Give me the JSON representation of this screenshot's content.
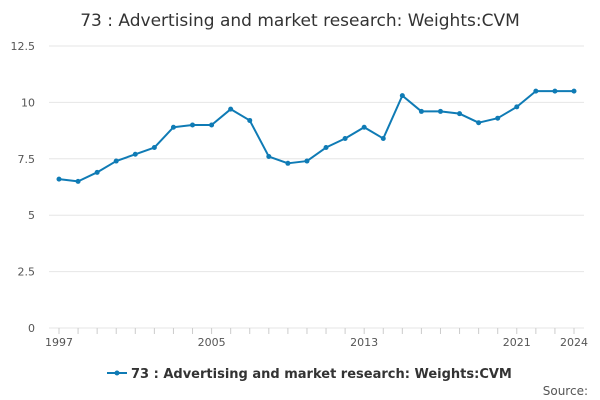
{
  "chart_data": {
    "type": "line",
    "title": "73 : Advertising and market research: Weights:CVM",
    "xlabel": "",
    "ylabel": "",
    "ylim": [
      0,
      12.5
    ],
    "xlim": [
      1997,
      2024
    ],
    "y_ticks": [
      "0",
      "2.5",
      "5",
      "7.5",
      "10",
      "12.5"
    ],
    "y_tick_values": [
      0,
      2.5,
      5,
      7.5,
      10,
      12.5
    ],
    "x_ticks": [
      "1997",
      "2005",
      "2013",
      "2021",
      "2024"
    ],
    "x_tick_values": [
      1997,
      2005,
      2013,
      2021,
      2024
    ],
    "grid": true,
    "legend_position": "bottom",
    "series": [
      {
        "name": "73 : Advertising and market research: Weights:CVM",
        "color": "#0f7bb5",
        "x": [
          1997,
          1998,
          1999,
          2000,
          2001,
          2002,
          2003,
          2004,
          2005,
          2006,
          2007,
          2008,
          2009,
          2010,
          2011,
          2012,
          2013,
          2014,
          2015,
          2016,
          2017,
          2018,
          2019,
          2020,
          2021,
          2022,
          2023,
          2024
        ],
        "values": [
          6.6,
          6.5,
          6.9,
          7.4,
          7.7,
          8.0,
          8.9,
          9.0,
          9.0,
          9.7,
          9.2,
          7.6,
          7.3,
          7.4,
          8.0,
          8.4,
          8.9,
          8.4,
          10.3,
          9.6,
          9.6,
          9.5,
          9.1,
          9.3,
          9.8,
          10.5,
          10.5,
          10.5
        ]
      }
    ],
    "source_label": "Source:"
  }
}
